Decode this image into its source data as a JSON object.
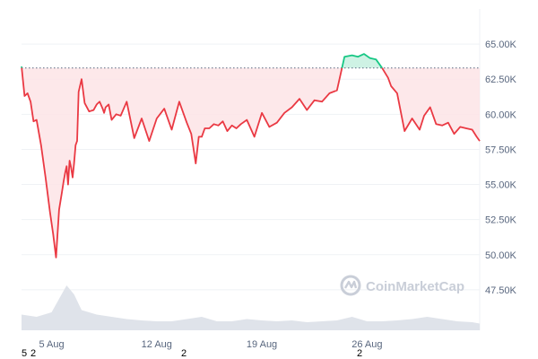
{
  "chart_data": {
    "type": "line",
    "title": "",
    "xlabel": "",
    "ylabel": "",
    "x_ticks": [
      "5 Aug",
      "12 Aug",
      "19 Aug",
      "26 Aug"
    ],
    "y_ticks": [
      "47.50K",
      "50.00K",
      "52.50K",
      "55.00K",
      "57.50K",
      "60.00K",
      "62.50K",
      "65.00K"
    ],
    "ylim": [
      45000,
      67500
    ],
    "xlim": [
      0,
      30.5
    ],
    "reference_price": 63300,
    "series": [
      {
        "x": [
          0,
          0.2,
          0.4,
          0.6,
          0.8,
          1.0,
          1.3,
          1.6,
          1.9,
          2.1,
          2.3,
          2.5,
          2.7,
          2.8,
          2.9,
          3.0,
          3.1,
          3.2,
          3.3,
          3.4,
          3.5,
          3.6,
          3.7,
          3.8,
          4.0,
          4.2,
          4.5,
          4.8,
          5.0,
          5.2,
          5.4,
          5.5,
          5.6,
          5.8,
          6.0,
          6.3,
          6.6,
          7.0,
          7.5,
          8.0,
          8.5,
          9.0,
          9.5,
          10.0,
          10.5,
          11.0,
          11.3,
          11.6,
          11.8,
          12.0,
          12.2,
          12.5,
          12.8,
          13.1,
          13.4,
          13.7,
          14.0,
          14.3,
          14.6,
          15.0,
          15.5,
          16.0,
          16.5,
          17.0,
          17.5,
          18.0,
          18.5,
          19.0,
          19.5,
          20.0,
          20.5,
          21.0,
          21.5,
          22.0,
          22.4,
          22.8,
          23.2,
          23.6,
          24.0,
          24.4,
          24.6,
          25.0,
          25.5,
          26.0,
          26.5,
          26.8,
          27.2,
          27.6,
          28.0,
          28.4,
          28.8,
          29.2,
          29.6,
          30.0,
          30.3,
          30.5
        ],
        "y": [
          63400,
          61300,
          61500,
          60900,
          59500,
          59600,
          57800,
          55500,
          53000,
          51500,
          49800,
          53200,
          54500,
          55200,
          55800,
          56300,
          55000,
          56700,
          56200,
          55500,
          56500,
          57800,
          58100,
          61600,
          62500,
          60800,
          60200,
          60300,
          60700,
          60900,
          60400,
          60100,
          60500,
          60700,
          59600,
          60000,
          59900,
          60900,
          58300,
          59700,
          58100,
          59700,
          60400,
          58900,
          60900,
          59400,
          58600,
          56500,
          58400,
          58400,
          59000,
          59000,
          59300,
          59200,
          59500,
          58800,
          59200,
          59000,
          59300,
          59600,
          58400,
          60100,
          59100,
          59400,
          60100,
          60500,
          61100,
          60300,
          61000,
          60900,
          61500,
          61700,
          64100,
          64200,
          64100,
          64300,
          64000,
          63900,
          63300,
          62600,
          62000,
          61500,
          58800,
          59700,
          58900,
          59900,
          60500,
          59300,
          59200,
          59400,
          58600,
          59100,
          59000,
          58900,
          58400,
          58100
        ]
      }
    ],
    "volume": {
      "x": [
        0,
        1,
        2,
        2.5,
        3,
        3.5,
        4,
        5,
        6,
        7,
        8,
        9,
        10,
        11,
        12,
        13,
        14,
        15,
        16,
        17,
        18,
        19,
        20,
        21,
        22,
        22.5,
        23,
        24,
        25,
        26,
        27,
        28,
        29,
        30,
        30.5
      ],
      "values": [
        0.35,
        0.3,
        0.4,
        0.7,
        1.0,
        0.8,
        0.45,
        0.35,
        0.3,
        0.25,
        0.22,
        0.2,
        0.2,
        0.25,
        0.3,
        0.2,
        0.2,
        0.25,
        0.22,
        0.2,
        0.22,
        0.18,
        0.2,
        0.22,
        0.3,
        0.25,
        0.2,
        0.2,
        0.22,
        0.25,
        0.3,
        0.25,
        0.2,
        0.18,
        0.15
      ]
    },
    "colors": {
      "down": "#ea3943",
      "up": "#16c784",
      "down_fill": "#fde4e6",
      "up_fill": "#c9f1e1",
      "grid": "#eff2f5",
      "reference_line": "#58667e",
      "volume": "#dfe3ea"
    },
    "grid": true,
    "watermark": "CoinMarketCap"
  },
  "corner_labels": [
    {
      "text": "5"
    },
    {
      "text": "2"
    },
    {
      "text": "2"
    },
    {
      "text": "2"
    }
  ]
}
